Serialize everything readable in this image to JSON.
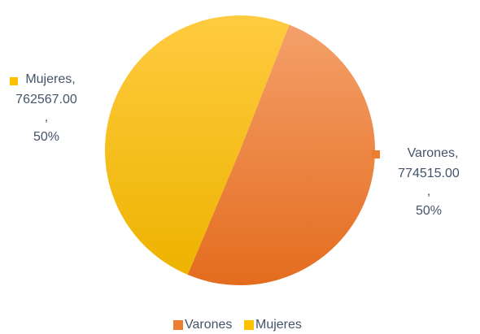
{
  "chart_data": {
    "type": "pie",
    "categories": [
      "Varones",
      "Mujeres"
    ],
    "values": [
      774515,
      762567
    ],
    "value_labels": [
      "774515.00",
      "762567.00"
    ],
    "percents": [
      50,
      50
    ],
    "percent_labels": [
      "50%",
      "50%"
    ],
    "label_separator": ",",
    "colors": [
      "#ED7D31",
      "#FFC000"
    ],
    "legend": "bottom"
  }
}
